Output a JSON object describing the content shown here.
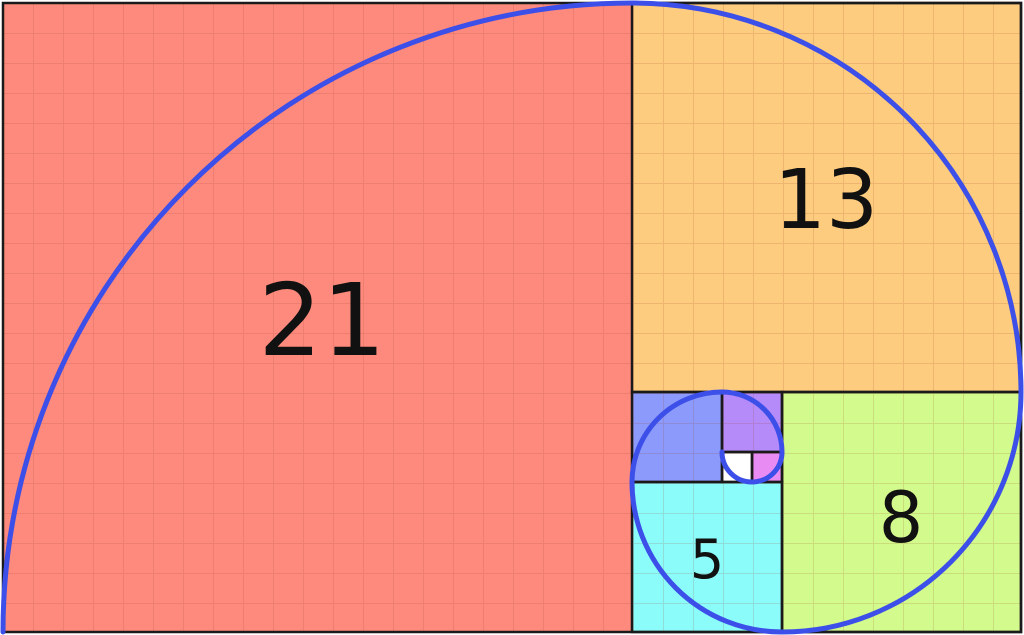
{
  "squares": [
    {
      "label": "21",
      "color": "#fd8a7d"
    },
    {
      "label": "13",
      "color": "#fdcc7e"
    },
    {
      "label": "8",
      "color": "#d3fa8c"
    },
    {
      "label": "5",
      "color": "#8cfcfb"
    },
    {
      "label": "",
      "color": "#8b9afb"
    },
    {
      "label": "",
      "color": "#b58bfa"
    },
    {
      "label": "",
      "color": "#e88cf4"
    },
    {
      "label": "",
      "color": "#ffffff"
    }
  ],
  "spiral_color": "#3c4fe8",
  "grid_color": "rgba(200,80,60,0.18)"
}
